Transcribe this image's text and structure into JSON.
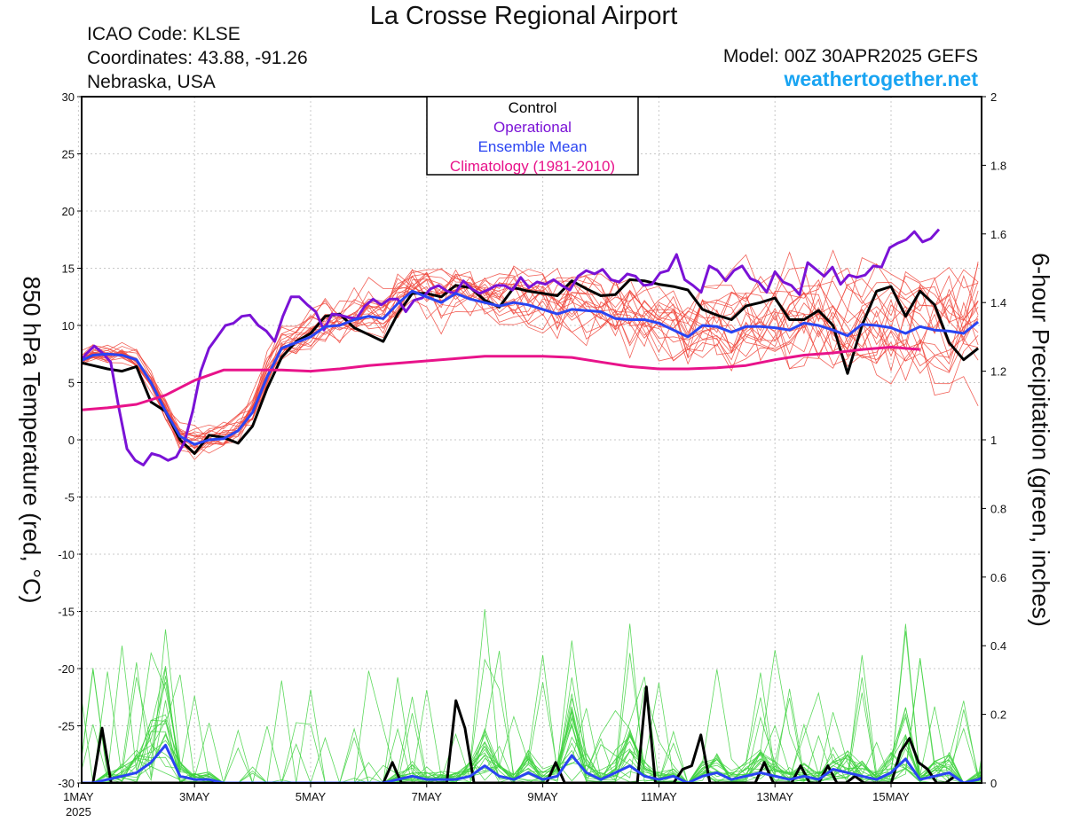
{
  "header": {
    "title": "La Crosse Regional Airport",
    "icao": "ICAO Code: KLSE",
    "coordinates": "Coordinates: 43.88, -91.26",
    "region": "Nebraska, USA",
    "model": "Model: 00Z 30APR2025 GEFS",
    "site": "weathertogether.net"
  },
  "colors": {
    "control": "#000000",
    "operational": "#7a12d6",
    "ensemble_mean": "#2a44f2",
    "climatology": "#e8138a",
    "members_temp": "#f0463c",
    "members_precip": "#3fd23f",
    "site": "#19a4f2"
  },
  "chart_data": {
    "type": "line",
    "ylabel": "850 hPa Temperature (red, °C)",
    "y2label": "6-hour Precipitation (green, inches)",
    "ylim": [
      -30,
      30
    ],
    "y2lim": [
      0,
      2
    ],
    "yticks": [
      30,
      25,
      20,
      15,
      10,
      5,
      0,
      -5,
      -10,
      -15,
      -20,
      -25,
      -30
    ],
    "y2ticks": [
      "2",
      "1.8",
      "1.6",
      "1.4",
      "1.2",
      "1",
      "0.8",
      "0.6",
      "0.4",
      "0.2",
      "0"
    ],
    "xlim": [
      0,
      15.9
    ],
    "xlabels": [
      {
        "x": 1,
        "label": "1MAY",
        "sub": "2025"
      },
      {
        "x": 3,
        "label": "3MAY"
      },
      {
        "x": 5,
        "label": "5MAY"
      },
      {
        "x": 7,
        "label": "7MAY"
      },
      {
        "x": 9,
        "label": "9MAY"
      },
      {
        "x": 11,
        "label": "11MAY"
      },
      {
        "x": 13,
        "label": "13MAY"
      },
      {
        "x": 15,
        "label": "15MAY"
      }
    ],
    "legend": {
      "placement": "top-center",
      "entries": [
        "Control",
        "Operational",
        "Ensemble Mean",
        "Climatology (1981-2010)"
      ]
    },
    "temperature_series": [
      {
        "name": "Control",
        "key": "control",
        "x0": 0,
        "dx": 0.25,
        "values": [
          3,
          4.5,
          6,
          7.2,
          6.8,
          6.5,
          6.2,
          6.0,
          6.4,
          3.3,
          2.5,
          0,
          -1.2,
          0.4,
          0.2,
          -0.3,
          1.2,
          4.5,
          7.2,
          8.6,
          9.3,
          10.8,
          11,
          9.8,
          9.2,
          8.6,
          11,
          12.8,
          12.8,
          12.5,
          13.5,
          13.3,
          12.2,
          11.6,
          13.3,
          13.0,
          12.8,
          12.6,
          13.9,
          13.2,
          12.6,
          12.7,
          14.0,
          13.9,
          13.6,
          13.4,
          13.1,
          11.4,
          10.9,
          10.5,
          11.7,
          12.0,
          12.4,
          10.5,
          10.5,
          11.3,
          10.0,
          5.8,
          10.0,
          13.0,
          13.4,
          10.8,
          13.0,
          11.8,
          8.5,
          7.0,
          8.0
        ]
      },
      {
        "name": "Operational",
        "key": "operational",
        "x0": 0,
        "dx": 0.25,
        "values": [
          2.5,
          4.4,
          6.0,
          6.4,
          6.8,
          5.4,
          9.0,
          6.5,
          7.5,
          8.2,
          7.6,
          6.8,
          2.8,
          -0.8,
          -1.8,
          -2.2,
          -1.2,
          -1.4,
          -1.8,
          -1.5,
          -0.2,
          2.5,
          6.0,
          8.0,
          9.0,
          10.0,
          10.2,
          10.8,
          10.9,
          10.0,
          9.5,
          8.6,
          10.8,
          12.5,
          12.5,
          11.8,
          11.2,
          9.6,
          11.0,
          10.9,
          10.7,
          10.6,
          11.7,
          12.3,
          11.8,
          12.3,
          12.3,
          11.2,
          12.2,
          12.4,
          13.2,
          13.5,
          13.0,
          12.8,
          13.9,
          13.2,
          12.8,
          13.1,
          13.5,
          13.5,
          13.1,
          14.2,
          13.3,
          13.8,
          13.6,
          14.0,
          13.5,
          13.1,
          14.3,
          14.8,
          14.5,
          14.9,
          14.0,
          13.8,
          14.5,
          14.3,
          13.5,
          13.6,
          14.6,
          14.8,
          16.2,
          14.0,
          13.5,
          12.9,
          15.2,
          14.8,
          13.9,
          14.8,
          15.2,
          14.1,
          13.8,
          12.9,
          14.7,
          13.8,
          13.5,
          12.7,
          15.5,
          14.9,
          14.3,
          15.1,
          13.6,
          14.4,
          14.2,
          14.4,
          15.2,
          15.1,
          16.8,
          17.2,
          17.5,
          18.2,
          17.3,
          17.6,
          18.4
        ],
        "x_stretch": 0.1413
      },
      {
        "name": "Ensemble Mean",
        "key": "ensemble_mean",
        "x0": 0,
        "dx": 0.25,
        "values": [
          2.4,
          4.6,
          5.7,
          6.2,
          6.8,
          7.4,
          7.5,
          7.4,
          7.0,
          5.0,
          2.5,
          0.3,
          -0.4,
          0,
          0.1,
          0.8,
          2.4,
          5.5,
          8.0,
          8.5,
          9.0,
          9.9,
          10.0,
          10.5,
          10.8,
          10.6,
          11.9,
          13.0,
          12.5,
          12.0,
          12.8,
          12.3,
          12.0,
          11.7,
          12.0,
          11.8,
          11.4,
          11.0,
          11.4,
          11.3,
          11.2,
          10.6,
          10.5,
          10.5,
          10.2,
          9.6,
          9.0,
          10.0,
          9.9,
          9.4,
          9.9,
          9.9,
          9.8,
          9.6,
          10.2,
          10.0,
          9.6,
          9.1,
          10.1,
          10.0,
          9.8,
          9.3,
          9.9,
          9.6,
          9.5,
          9.3,
          10.3
        ]
      },
      {
        "name": "Climatology (1981-2010)",
        "key": "climatology",
        "x0": 0,
        "dx": 0.5,
        "values": [
          3.4,
          2.5,
          2.6,
          2.8,
          3.1,
          3.9,
          5.2,
          6.1,
          6.1,
          6.1,
          6.0,
          6.2,
          6.5,
          6.7,
          6.9,
          7.1,
          7.3,
          7.3,
          7.3,
          7.2,
          6.8,
          6.4,
          6.2,
          6.2,
          6.3,
          6.5,
          7.0,
          7.4,
          7.6,
          7.9,
          8.1,
          7.9
        ]
      }
    ],
    "precip_series": [
      {
        "name": "Control",
        "key": "control",
        "x0": 0,
        "dx": 0.25,
        "values": [
          0,
          0,
          0,
          0,
          0,
          0,
          0,
          0,
          0,
          0.16,
          0,
          0,
          0,
          0,
          0,
          0,
          0,
          0,
          0,
          0,
          0,
          0,
          0,
          0,
          0,
          0,
          0,
          0,
          0,
          0,
          0,
          0,
          0,
          0,
          0,
          0,
          0,
          0,
          0,
          0,
          0,
          0.06,
          0,
          0,
          0,
          0,
          0,
          0,
          0.24,
          0.16,
          0,
          0,
          0,
          0,
          0,
          0,
          0,
          0,
          0,
          0.06,
          0,
          0,
          0,
          0,
          0,
          0,
          0,
          0,
          0,
          0.28,
          0,
          0,
          0,
          0.04,
          0.05,
          0.14,
          0,
          0,
          0,
          0,
          0,
          0,
          0.06,
          0,
          0,
          0,
          0.05,
          0,
          0,
          0.05,
          0,
          0,
          0.02,
          0,
          0,
          0,
          0,
          0.09,
          0.13,
          0.06,
          0.04,
          0,
          0,
          0.02
        ],
        "x_stretch": 0.1563
      },
      {
        "name": "Ensemble Mean",
        "key": "ensemble_mean",
        "x0": 0,
        "dx": 0.25,
        "values": [
          0,
          0,
          0,
          0,
          0,
          0,
          0.01,
          0.02,
          0.03,
          0.06,
          0.11,
          0.02,
          0.01,
          0.01,
          0,
          0,
          0,
          0,
          0,
          0,
          0,
          0,
          0,
          0,
          0,
          0,
          0.01,
          0.02,
          0.01,
          0.01,
          0.01,
          0.02,
          0.05,
          0.02,
          0.01,
          0.03,
          0.01,
          0.02,
          0.08,
          0.03,
          0.01,
          0.03,
          0.05,
          0.02,
          0.01,
          0.02,
          0,
          0.02,
          0.03,
          0.01,
          0.02,
          0.03,
          0.02,
          0.01,
          0.02,
          0.01,
          0.04,
          0.03,
          0.02,
          0.01,
          0.03,
          0.07,
          0.01,
          0.02,
          0.03,
          0,
          0.01,
          0.03
        ]
      }
    ]
  }
}
